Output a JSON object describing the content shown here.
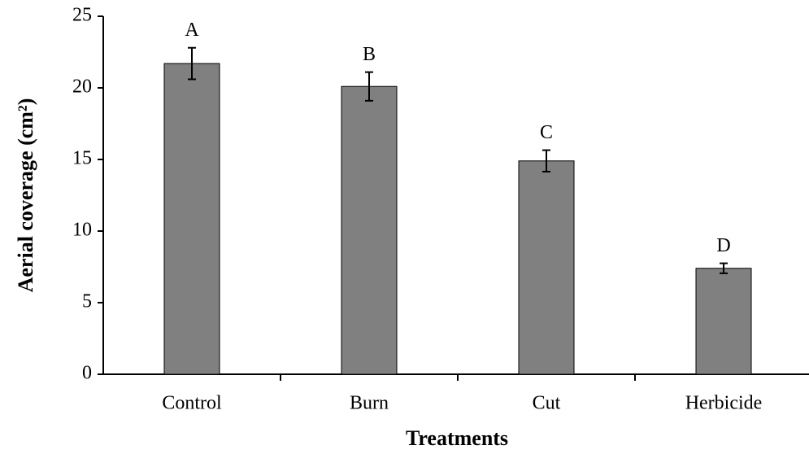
{
  "chart_data": {
    "type": "bar",
    "xlabel": "Treatments",
    "ylabel": "Aerial coverage (cm²)",
    "categories": [
      "Control",
      "Burn",
      "Cut",
      "Herbicide"
    ],
    "values": [
      21.7,
      20.1,
      14.9,
      7.4
    ],
    "errors": [
      1.1,
      1.0,
      0.75,
      0.35
    ],
    "annotations": [
      "A",
      "B",
      "C",
      "D"
    ],
    "color": "#808080",
    "ylim": [
      0,
      25
    ],
    "yticks": [
      0,
      5,
      10,
      15,
      20,
      25
    ],
    "grid": false
  }
}
